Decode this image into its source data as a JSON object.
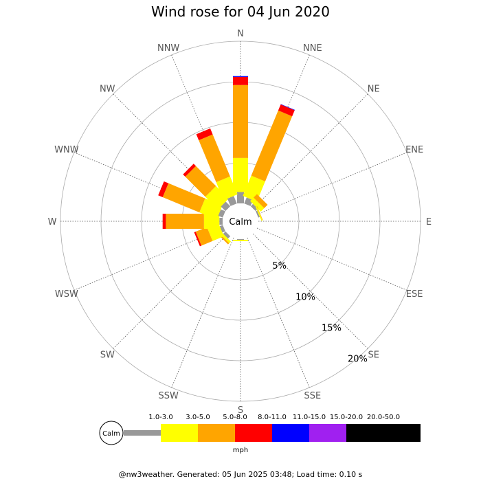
{
  "chart_data": {
    "type": "wind-rose",
    "title": "Wind rose for 04 Jun 2020",
    "directions": [
      "N",
      "NNE",
      "NE",
      "ENE",
      "E",
      "ESE",
      "SE",
      "SSE",
      "S",
      "SSW",
      "SW",
      "WSW",
      "W",
      "WNW",
      "NW",
      "NNW"
    ],
    "ring_labels": [
      "5%",
      "10%",
      "15%",
      "20%"
    ],
    "rlim": [
      0,
      20
    ],
    "calm_label": "Calm",
    "unit_label": "mph",
    "speed_bins": [
      {
        "label": "",
        "color": "#999999"
      },
      {
        "label": "1.0-3.0",
        "color": "#ffff00"
      },
      {
        "label": "3.0-5.0",
        "color": "#ffa500"
      },
      {
        "label": "5.0-8.0",
        "color": "#ff0000"
      },
      {
        "label": "8.0-11.0",
        "color": "#0000ff"
      },
      {
        "label": "11.0-15.0",
        "color": "#a020f0"
      },
      {
        "label": "15.0-20.0",
        "color": "#000000"
      }
    ],
    "legend_extra_label": "20.0-50.0",
    "series": [
      {
        "direction": "N",
        "cumulative": [
          1.4,
          5.6,
          14.6,
          15.6,
          15.7
        ]
      },
      {
        "direction": "NNE",
        "cumulative": [
          0.8,
          3.5,
          12.2,
          13.0,
          13.05
        ]
      },
      {
        "direction": "NE",
        "cumulative": [
          0.4,
          1.0,
          1.6
        ]
      },
      {
        "direction": "ENE",
        "cumulative": [
          0.2,
          0.35,
          0.4
        ]
      },
      {
        "direction": "E",
        "cumulative": []
      },
      {
        "direction": "ESE",
        "cumulative": []
      },
      {
        "direction": "SE",
        "cumulative": []
      },
      {
        "direction": "SSE",
        "cumulative": []
      },
      {
        "direction": "S",
        "cumulative": [
          0.1,
          0.25
        ]
      },
      {
        "direction": "SSW",
        "cumulative": []
      },
      {
        "direction": "SW",
        "cumulative": [
          0.4,
          0.7,
          0.9
        ]
      },
      {
        "direction": "WSW",
        "cumulative": [
          0.4,
          1.9,
          3.4,
          3.6
        ]
      },
      {
        "direction": "W",
        "cumulative": [
          0.4,
          2.3,
          7.0,
          7.4
        ]
      },
      {
        "direction": "WNW",
        "cumulative": [
          0.6,
          2.9,
          7.8,
          8.4
        ]
      },
      {
        "direction": "NW",
        "cumulative": [
          0.8,
          3.0,
          6.5,
          6.9
        ]
      },
      {
        "direction": "NNW",
        "cumulative": [
          1.0,
          3.4,
          9.0,
          9.8
        ]
      }
    ]
  },
  "footer": "@nw3weather. Generated: 05 Jun 2025 03:48; Load time: 0.10 s"
}
